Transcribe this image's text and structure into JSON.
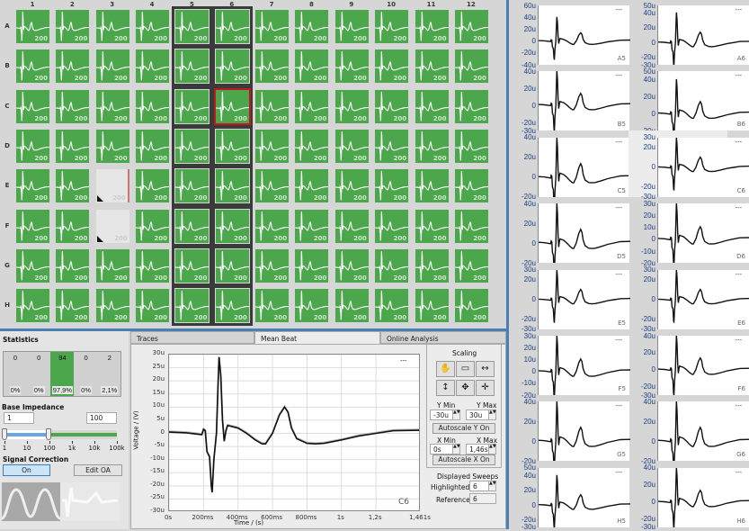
{
  "grid": {
    "columns": [
      "1",
      "2",
      "3",
      "4",
      "5",
      "6",
      "7",
      "8",
      "9",
      "10",
      "11",
      "12"
    ],
    "rows": [
      "A",
      "B",
      "C",
      "D",
      "E",
      "F",
      "G",
      "H"
    ],
    "sweep_count": "200",
    "selected_columns": [
      "5",
      "6"
    ],
    "highlighted_well": "C6",
    "empty_wells": [
      "E3",
      "F3"
    ],
    "well_color": "#4ca64c",
    "highlight_color": "#c0181e"
  },
  "right_panel": {
    "plots": [
      {
        "name": "A5",
        "ticks": [
          "60u",
          "40u",
          "20u",
          "0",
          "-20u",
          "-40u"
        ],
        "legend": "---"
      },
      {
        "name": "A6",
        "ticks": [
          "50u",
          "40u",
          "20u",
          "0",
          "-20u",
          "-30u"
        ],
        "legend": "---"
      },
      {
        "name": "B5",
        "ticks": [
          "40u",
          "20u",
          "0",
          "-20u",
          "-30u"
        ],
        "legend": "---"
      },
      {
        "name": "B6",
        "ticks": [
          "50u",
          "40u",
          "20u",
          "0",
          "-20u"
        ],
        "legend": "---"
      },
      {
        "name": "C5",
        "ticks": [
          "40u",
          "20u",
          "0",
          "-20u"
        ],
        "legend": "---"
      },
      {
        "name": "C6",
        "ticks": [
          "30u",
          "20u",
          "0",
          "-20u",
          "-30u"
        ],
        "legend": "---",
        "selected": true
      },
      {
        "name": "D5",
        "ticks": [
          "40u",
          "20u",
          "0",
          "-20u"
        ],
        "legend": "---"
      },
      {
        "name": "D6",
        "ticks": [
          "30u",
          "20u",
          "10u",
          "0",
          "-10u",
          "-20u"
        ],
        "legend": "---"
      },
      {
        "name": "E5",
        "ticks": [
          "30u",
          "20u",
          "0",
          "-20u",
          "-30u"
        ],
        "legend": "---"
      },
      {
        "name": "E6",
        "ticks": [
          "30u",
          "20u",
          "0",
          "-20u",
          "-30u"
        ],
        "legend": "---"
      },
      {
        "name": "F5",
        "ticks": [
          "30u",
          "20u",
          "10u",
          "0",
          "-10u",
          "-20u"
        ],
        "legend": "---"
      },
      {
        "name": "F6",
        "ticks": [
          "40u",
          "20u",
          "0",
          "-20u",
          "-30u"
        ],
        "legend": "---"
      },
      {
        "name": "G5",
        "ticks": [
          "40u",
          "20u",
          "0",
          "-20u"
        ],
        "legend": "---"
      },
      {
        "name": "G6",
        "ticks": [
          "40u",
          "20u",
          "0",
          "-20u"
        ],
        "legend": "---"
      },
      {
        "name": "H5",
        "ticks": [
          "50u",
          "40u",
          "20u",
          "0",
          "-20u",
          "-30u"
        ],
        "legend": "---"
      },
      {
        "name": "H6",
        "ticks": [
          "40u",
          "20u",
          "0",
          "-20u",
          "-30u"
        ],
        "legend": "---"
      }
    ]
  },
  "statistics": {
    "title": "Statistics",
    "bins": [
      {
        "count": "0",
        "percent": "0%"
      },
      {
        "count": "0",
        "percent": "0%"
      },
      {
        "count": "94",
        "percent": "97,9%",
        "active": true
      },
      {
        "count": "0",
        "percent": "0%"
      },
      {
        "count": "2",
        "percent": "2,1%"
      }
    ],
    "base_impedance": {
      "label": "Base Impedance",
      "min_value": "1",
      "max_value": "100",
      "scale_labels": [
        "1",
        "10",
        "100",
        "1k",
        "10k",
        "100k"
      ]
    },
    "signal_correction": {
      "label": "Signal Correction",
      "on_label": "On",
      "edit_label": "Edit OA"
    }
  },
  "tabs": [
    {
      "label": "Traces"
    },
    {
      "label": "Mean Beat",
      "active": true
    },
    {
      "label": "Online Analysis"
    }
  ],
  "scaling": {
    "title": "Scaling",
    "tools": [
      "hand-icon",
      "zoom-rect-icon",
      "zoom-x-icon",
      "zoom-y-icon",
      "pan-icon",
      "zoom-point-icon"
    ],
    "y_min_label": "Y Min",
    "y_min": "-30u",
    "y_max_label": "Y Max",
    "y_max": "30u",
    "autoscale_y": "Autoscale Y On",
    "x_min_label": "X Min",
    "x_min": "0s",
    "x_max_label": "X Max",
    "x_max": "1,46s",
    "autoscale_x": "Autoscale X On",
    "sweeps_title": "Displayed Sweeps",
    "highlighted_label": "Highlighted",
    "highlighted": "6",
    "reference_label": "Reference",
    "reference": "6"
  },
  "chart_data": {
    "type": "line",
    "xlabel": "Time / (s)",
    "ylabel": "Voltage / (V)",
    "well_label": "C6",
    "legend": "---",
    "xlim": [
      0,
      1.46
    ],
    "ylim": [
      -30,
      30
    ],
    "x_ticks": [
      0,
      0.2,
      0.4,
      0.6,
      0.8,
      1.0,
      1.2,
      1.46
    ],
    "x_tick_labels": [
      "0s",
      "200ms",
      "400ms",
      "600ms",
      "800ms",
      "1s",
      "1,2s",
      "1,461s"
    ],
    "y_ticks": [
      30,
      25,
      20,
      15,
      10,
      5,
      0,
      -5,
      -10,
      -15,
      -20,
      -25,
      -30
    ],
    "y_tick_labels": [
      "30u",
      "25u",
      "20u",
      "15u",
      "10u",
      "5u",
      "0",
      "-5u",
      "-10u",
      "-15u",
      "-20u",
      "-25u",
      "-30u"
    ],
    "grid": true,
    "series": [
      {
        "x": [
          0,
          0.1,
          0.19,
          0.2,
          0.21,
          0.22,
          0.235,
          0.245,
          0.25,
          0.26,
          0.275,
          0.285,
          0.29,
          0.3,
          0.31,
          0.32,
          0.33,
          0.34,
          0.4,
          0.45,
          0.5,
          0.54,
          0.56,
          0.6,
          0.64,
          0.67,
          0.69,
          0.71,
          0.74,
          0.8,
          0.85,
          0.9,
          1.0,
          1.1,
          1.2,
          1.3,
          1.46
        ],
        "y": [
          0.5,
          0.2,
          -0.5,
          1.5,
          1,
          -7,
          -9,
          -20,
          -22.5,
          -10,
          0,
          20,
          29,
          22,
          5,
          -3,
          1,
          3,
          2,
          0,
          -2.5,
          -4,
          -4,
          0,
          7,
          10,
          8,
          2,
          -2,
          -3.8,
          -4,
          -3.8,
          -2.5,
          -1,
          0,
          1,
          1.2
        ]
      }
    ]
  }
}
